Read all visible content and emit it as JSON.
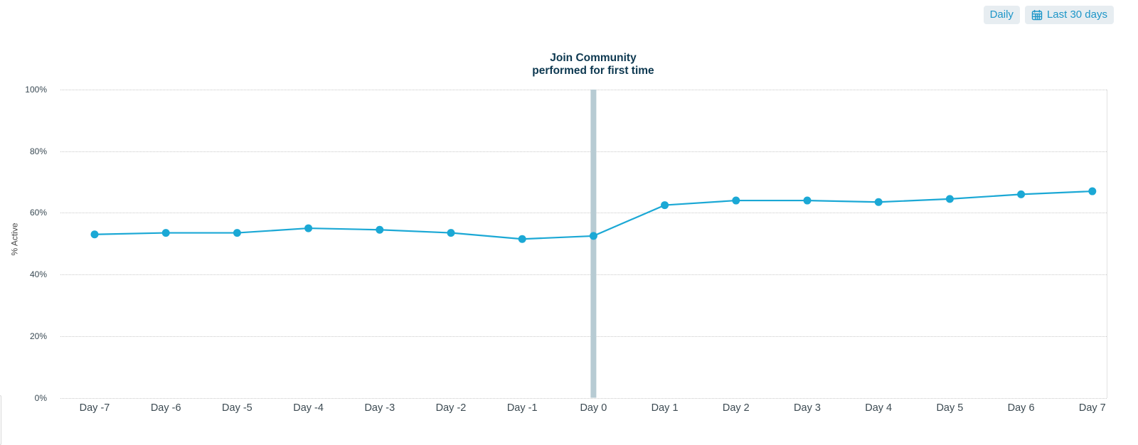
{
  "controls": {
    "granularity_label": "Daily",
    "date_range_label": "Last 30 days",
    "accent_color": "#1E96C8",
    "button_bg": "#E7EDF1"
  },
  "chart_data": {
    "type": "line",
    "title": "Join Community performed for first time",
    "title_lines": [
      "Join Community",
      "performed for first time"
    ],
    "ylabel": "% Active",
    "xlabel": "",
    "categories": [
      "Day -7",
      "Day -6",
      "Day -5",
      "Day -4",
      "Day -3",
      "Day -2",
      "Day -1",
      "Day 0",
      "Day 1",
      "Day 2",
      "Day 3",
      "Day 4",
      "Day 5",
      "Day 6",
      "Day 7"
    ],
    "series": [
      {
        "name": "% Active",
        "values": [
          53,
          53.5,
          53.5,
          55,
          54.5,
          53.5,
          51.5,
          52.5,
          62.5,
          64,
          64,
          63.5,
          64.5,
          66,
          67
        ]
      }
    ],
    "y_ticks": [
      "0%",
      "20%",
      "40%",
      "60%",
      "80%",
      "100%"
    ],
    "ylim": [
      0,
      100
    ],
    "grid": "horizontal-dotted",
    "legend": "none",
    "line_color": "#1BA8D5",
    "marker_color": "#1BA8D5",
    "annotation": {
      "at_category": "Day 0",
      "shape": "vertical-band",
      "color": "#B7CBD3",
      "label_lines": [
        "Join Community",
        "performed for first time"
      ]
    }
  }
}
